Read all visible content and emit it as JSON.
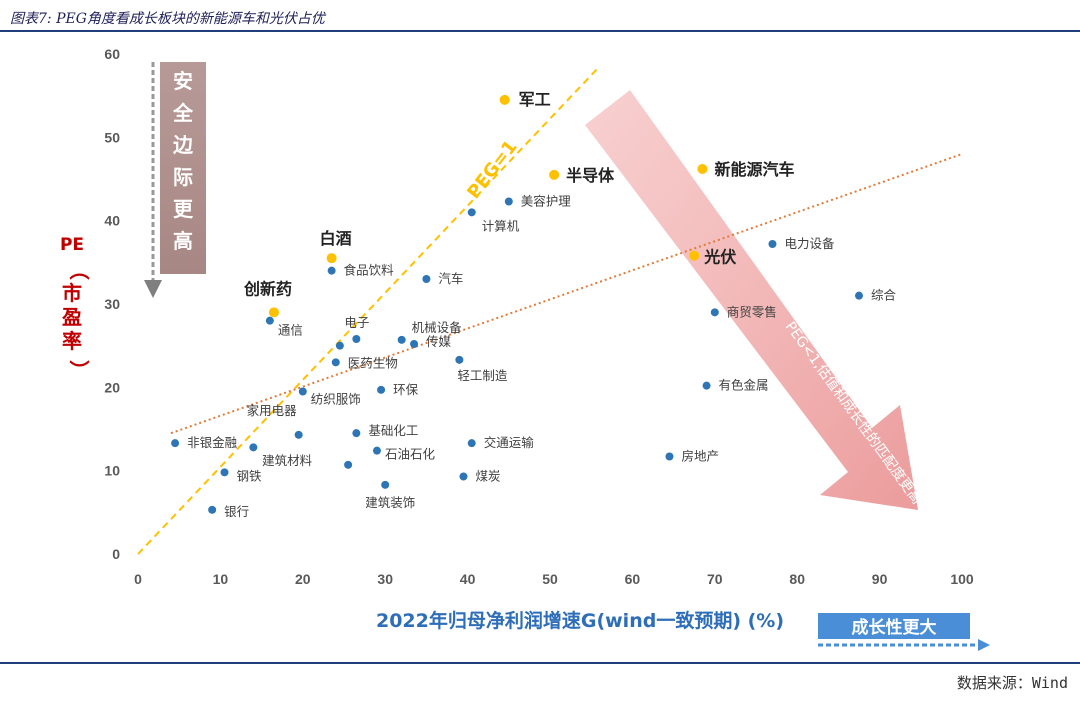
{
  "figure_title": "图表7: PEG角度看成长板块的新能源车和光伏占优",
  "source": "数据来源：Wind",
  "chart_data": {
    "type": "scatter",
    "xlabel": "2022年归母净利润增速G(wind一致预期) (%)",
    "ylabel_top": "PE",
    "ylabel_paren_open": "（",
    "ylabel_paren_close": "）",
    "ylabel_chars": [
      "市",
      "盈",
      "率"
    ],
    "xlim": [
      0,
      100
    ],
    "ylim": [
      0,
      60
    ],
    "xticks": [
      0,
      10,
      20,
      30,
      40,
      50,
      60,
      70,
      80,
      90,
      100
    ],
    "yticks": [
      0,
      10,
      20,
      30,
      40,
      50,
      60
    ],
    "grid": false,
    "colors": {
      "normal": "#2e75b6",
      "highlight": "#ffc000",
      "peg_line": "#ffc000",
      "trend": "#e07b39"
    },
    "points": [
      {
        "label": "军工",
        "x": 44.5,
        "y": 54.5,
        "highlight": true
      },
      {
        "label": "半导体",
        "x": 50.5,
        "y": 45.5,
        "highlight": true
      },
      {
        "label": "新能源汽车",
        "x": 68.5,
        "y": 46.2,
        "highlight": true
      },
      {
        "label": "白酒",
        "x": 23.5,
        "y": 35.5,
        "highlight": true
      },
      {
        "label": "光伏",
        "x": 67.5,
        "y": 35.8,
        "highlight": true
      },
      {
        "label": "创新药",
        "x": 16.5,
        "y": 29.0,
        "highlight": true
      },
      {
        "label": "美容护理",
        "x": 45.0,
        "y": 42.3,
        "highlight": false
      },
      {
        "label": "计算机",
        "x": 40.5,
        "y": 41.0,
        "highlight": false
      },
      {
        "label": "电力设备",
        "x": 77.0,
        "y": 37.2,
        "highlight": false
      },
      {
        "label": "食品饮料",
        "x": 23.5,
        "y": 34.0,
        "highlight": false
      },
      {
        "label": "汽车",
        "x": 35.0,
        "y": 33.0,
        "highlight": false
      },
      {
        "label": "综合",
        "x": 87.5,
        "y": 31.0,
        "highlight": false
      },
      {
        "label": "商贸零售",
        "x": 70.0,
        "y": 29.0,
        "highlight": false
      },
      {
        "label": "通信",
        "x": 16.0,
        "y": 28.0,
        "highlight": false
      },
      {
        "label": "电子",
        "x": 26.5,
        "y": 25.8,
        "highlight": false
      },
      {
        "label": "机械设备",
        "x": 32.0,
        "y": 25.7,
        "highlight": false
      },
      {
        "label": "传媒",
        "x": 33.5,
        "y": 25.2,
        "highlight": false
      },
      {
        "label": "",
        "x": 24.5,
        "y": 25.0,
        "highlight": false
      },
      {
        "label": "医药生物",
        "x": 24.0,
        "y": 23.0,
        "highlight": false
      },
      {
        "label": "轻工制造",
        "x": 39.0,
        "y": 23.3,
        "highlight": false
      },
      {
        "label": "环保",
        "x": 29.5,
        "y": 19.7,
        "highlight": false
      },
      {
        "label": "有色金属",
        "x": 69.0,
        "y": 20.2,
        "highlight": false
      },
      {
        "label": "纺织服饰",
        "x": 20.0,
        "y": 19.5,
        "highlight": false
      },
      {
        "label": "家用电器",
        "x": 19.5,
        "y": 14.3,
        "highlight": false
      },
      {
        "label": "基础化工",
        "x": 26.5,
        "y": 14.5,
        "highlight": false
      },
      {
        "label": "非银金融",
        "x": 4.5,
        "y": 13.3,
        "highlight": false
      },
      {
        "label": "",
        "x": 14.0,
        "y": 12.8,
        "highlight": false
      },
      {
        "label": "交通运输",
        "x": 40.5,
        "y": 13.3,
        "highlight": false
      },
      {
        "label": "石油石化",
        "x": 29.0,
        "y": 12.4,
        "highlight": false
      },
      {
        "label": "房地产",
        "x": 64.5,
        "y": 11.7,
        "highlight": false
      },
      {
        "label": "建筑材料",
        "x": 25.5,
        "y": 10.7,
        "highlight": false
      },
      {
        "label": "钢铁",
        "x": 10.5,
        "y": 9.8,
        "highlight": false
      },
      {
        "label": "煤炭",
        "x": 39.5,
        "y": 9.3,
        "highlight": false
      },
      {
        "label": "建筑装饰",
        "x": 30.0,
        "y": 8.3,
        "highlight": false
      },
      {
        "label": "银行",
        "x": 9.0,
        "y": 5.3,
        "highlight": false
      }
    ],
    "annotations": {
      "peg_line_label": "PEG=1",
      "safety_box": [
        "安",
        "全",
        "边",
        "际",
        "更",
        "高"
      ],
      "growth_box": "成长性更大",
      "arrow_text": "PEG<1,估值和成长性的匹配度更高"
    }
  }
}
